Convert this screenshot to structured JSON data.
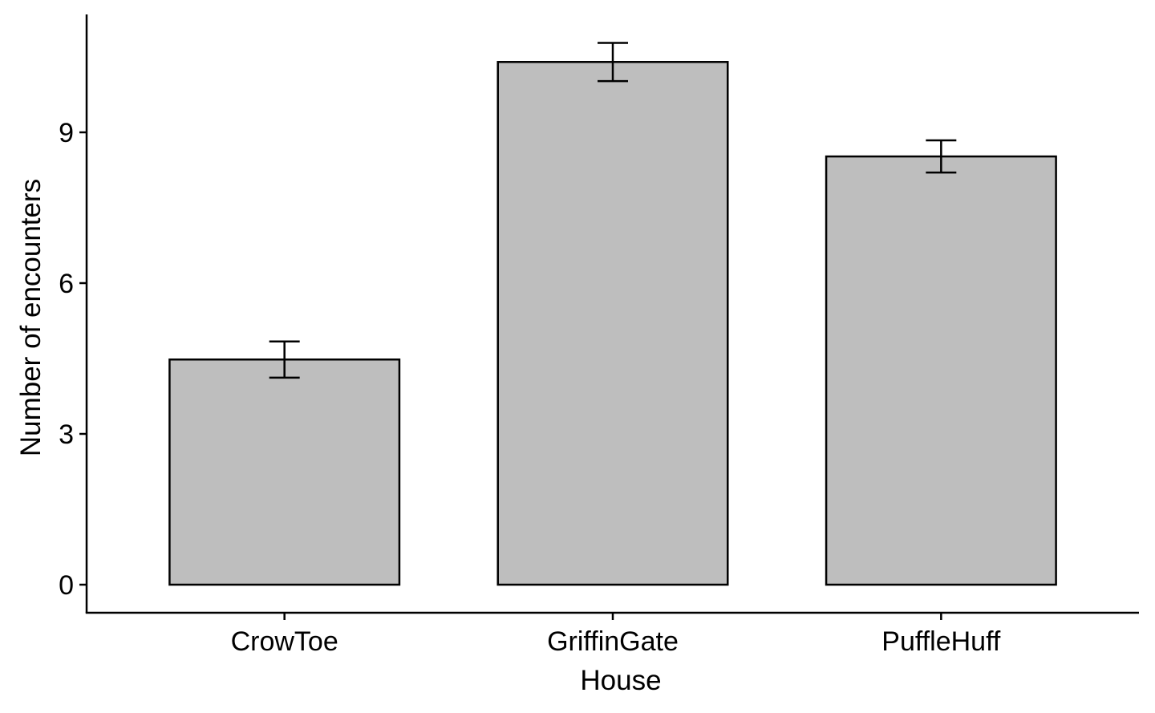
{
  "chart_data": {
    "type": "bar",
    "categories": [
      "CrowToe",
      "GriffinGate",
      "PuffleHuff"
    ],
    "values": [
      4.48,
      10.4,
      8.52
    ],
    "error_bars": [
      {
        "low": 4.12,
        "high": 4.84
      },
      {
        "low": 10.02,
        "high": 10.78
      },
      {
        "low": 8.2,
        "high": 8.84
      }
    ],
    "xlabel": "House",
    "ylabel": "Number of encounters",
    "yticks": [
      0,
      3,
      6,
      9
    ],
    "ylim": [
      -0.55,
      11.3
    ],
    "grid": false,
    "legend": "none",
    "colors": {
      "bar_fill": "#bebebe",
      "bar_stroke": "#000000",
      "axis": "#000000"
    }
  }
}
